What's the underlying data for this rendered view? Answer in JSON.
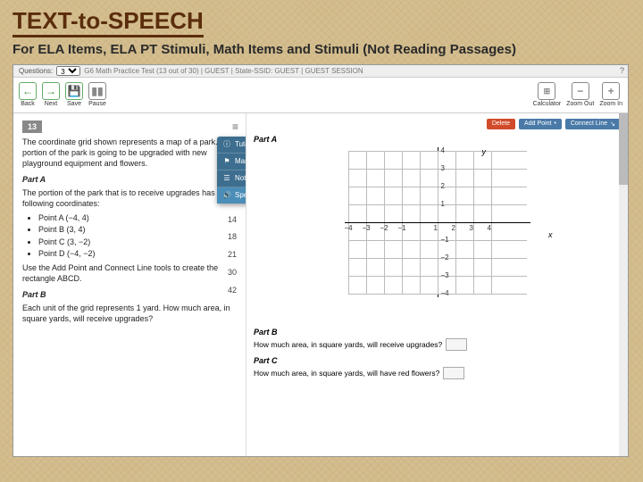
{
  "slide": {
    "title": "TEXT-to-SPEECH",
    "subtitle": "For ELA Items, ELA PT Stimuli, Math Items and Stimuli (Not Reading Passages)"
  },
  "topbar": {
    "questions_label": "Questions:",
    "questions_value": "3",
    "crumb": "G6 Math Practice Test (13 out of 30) | GUEST | State-SSID: GUEST | GUEST SESSION"
  },
  "toolbar": {
    "back": "Back",
    "next": "Next",
    "save": "Save",
    "pause": "Pause",
    "calc": "Calculator",
    "zoomout": "Zoom Out",
    "zoomin": "Zoom In"
  },
  "question": {
    "number": "13",
    "intro": "The coordinate grid shown represents a map of a park. A portion of the park is going to be upgraded with new playground equipment and flowers.",
    "partA_label": "Part A",
    "partA_text": "The portion of the park that is to receive upgrades has the following coordinates:",
    "points": [
      "Point A (−4, 4)",
      "Point B (3, 4)",
      "Point C (3, −2)",
      "Point D (−4, −2)"
    ],
    "instr": "Use the Add Point and Connect Line tools to create the rectangle ABCD.",
    "partB_label": "Part B",
    "partB_text": "Each unit of the grid represents 1 yard. How much area, in square yards, will receive upgrades?"
  },
  "menu": {
    "items": [
      "Tutorial",
      "Mark for Review",
      "Notepad",
      "Speak Question"
    ]
  },
  "numstrip": [
    "14",
    "18",
    "21",
    "30",
    "42"
  ],
  "graphTools": {
    "delete": "Delete",
    "addpoint": "Add Point",
    "connect": "Connect Line"
  },
  "grid": {
    "y_axis": "y",
    "x_axis": "x",
    "ylabels": [
      "4",
      "3",
      "2",
      "1",
      "−1",
      "−2",
      "−3",
      "−4"
    ],
    "xlabels": [
      "−4",
      "−3",
      "−2",
      "−1",
      "1",
      "2",
      "3",
      "4"
    ]
  },
  "right": {
    "partA": "Part A",
    "partB": "Part B",
    "q1": "How much area, in square yards, will receive upgrades?",
    "partC": "Part C",
    "q2": "How much area, in square yards, will have red flowers?"
  }
}
